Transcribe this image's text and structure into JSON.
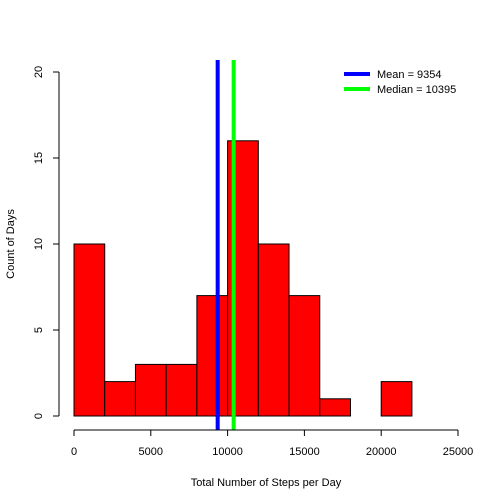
{
  "chart_data": {
    "type": "bar",
    "title": "",
    "xlabel": "Total Number of Steps per Day",
    "ylabel": "Count of Days",
    "xlim": [
      0,
      25000
    ],
    "ylim": [
      0,
      20
    ],
    "x_ticks": [
      "0",
      "5000",
      "10000",
      "15000",
      "20000",
      "25000"
    ],
    "y_ticks": [
      "0",
      "5",
      "10",
      "15",
      "20"
    ],
    "bins": [
      {
        "start": 0,
        "end": 2000,
        "count": 10
      },
      {
        "start": 2000,
        "end": 4000,
        "count": 2
      },
      {
        "start": 4000,
        "end": 6000,
        "count": 3
      },
      {
        "start": 6000,
        "end": 8000,
        "count": 3
      },
      {
        "start": 8000,
        "end": 10000,
        "count": 7
      },
      {
        "start": 10000,
        "end": 12000,
        "count": 16
      },
      {
        "start": 12000,
        "end": 14000,
        "count": 10
      },
      {
        "start": 14000,
        "end": 16000,
        "count": 7
      },
      {
        "start": 16000,
        "end": 18000,
        "count": 1
      },
      {
        "start": 18000,
        "end": 20000,
        "count": 0
      },
      {
        "start": 20000,
        "end": 22000,
        "count": 2
      }
    ],
    "bar_color": "#ff0000",
    "reference_lines": [
      {
        "label": "Mean = 9354",
        "value": 9354,
        "color": "#0000ff"
      },
      {
        "label": "Median = 10395",
        "value": 10395,
        "color": "#00ff00"
      }
    ],
    "grid": false,
    "legend_position": "top-right"
  }
}
